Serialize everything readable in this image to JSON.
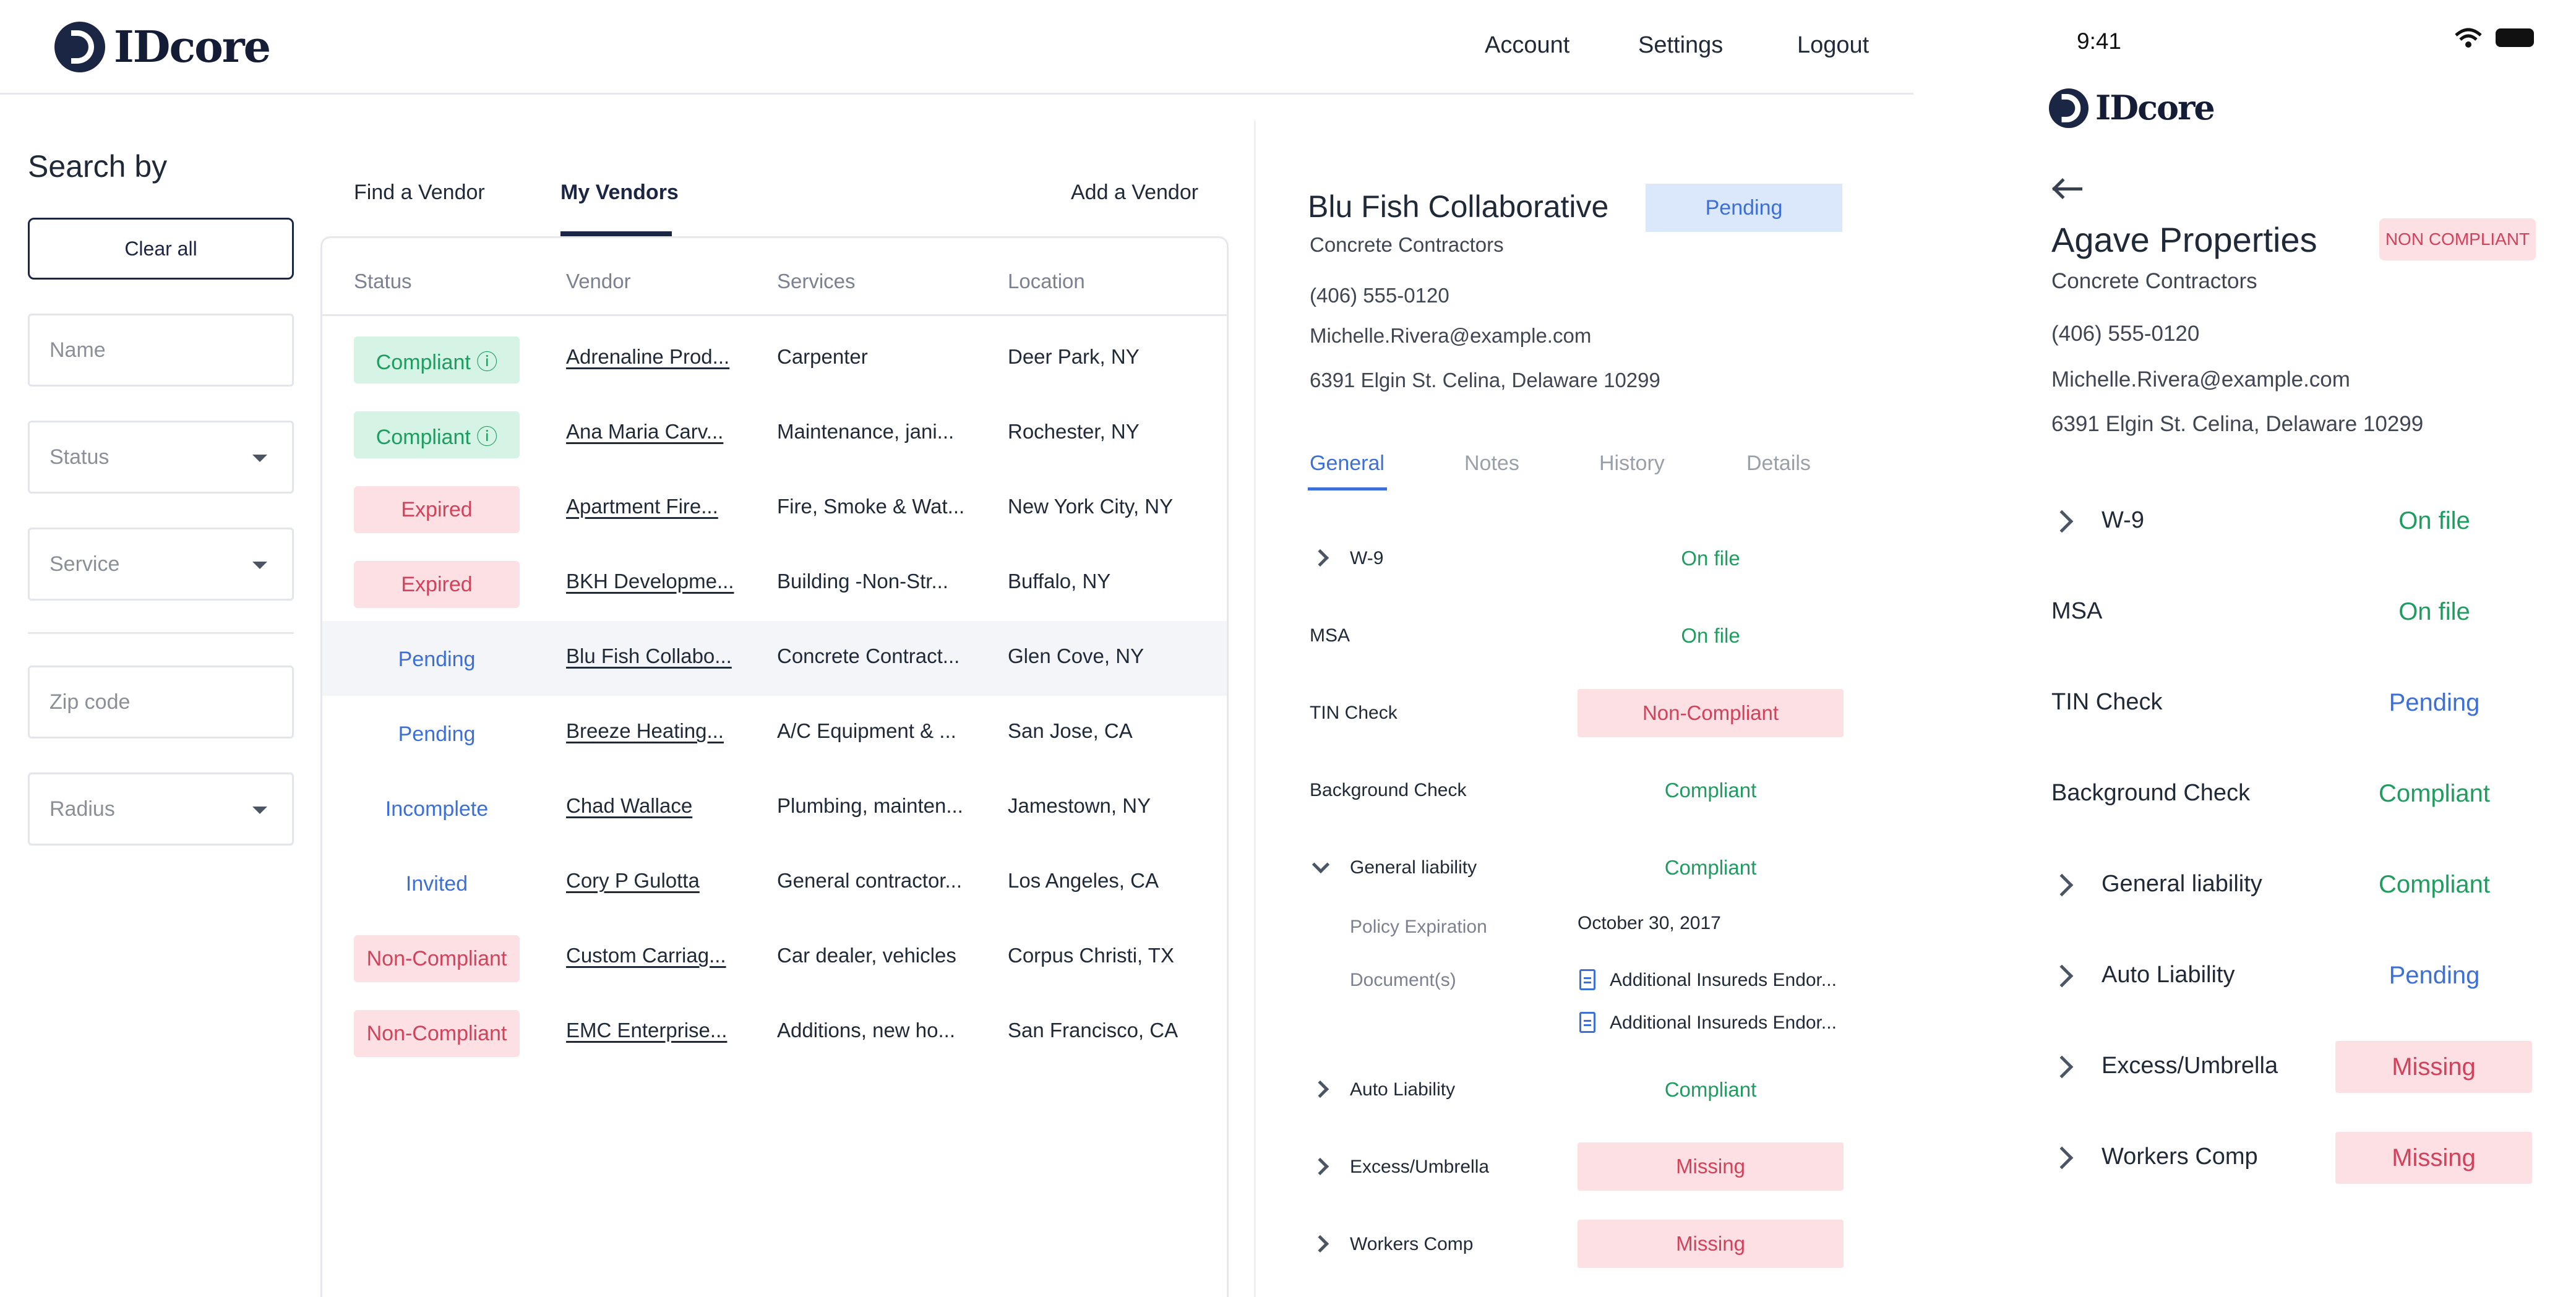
{
  "brand": {
    "name": "IDcore"
  },
  "nav": {
    "account": "Account",
    "settings": "Settings",
    "logout": "Logout"
  },
  "sidebar": {
    "title": "Search by",
    "clear_all": "Clear all",
    "name_placeholder": "Name",
    "status_label": "Status",
    "service_label": "Service",
    "zip_placeholder": "Zip code",
    "radius_label": "Radius"
  },
  "tabs": {
    "find": "Find a Vendor",
    "mine": "My Vendors",
    "add": "Add a Vendor"
  },
  "table": {
    "headers": [
      "Status",
      "Vendor",
      "Services",
      "Location"
    ],
    "rows": [
      {
        "status": "Compliant ⓘ",
        "vendor": "Adrenaline Prod...",
        "services": "Carpenter",
        "location": "Deer Park, NY"
      },
      {
        "status": "Compliant ⓘ",
        "vendor": "Ana Maria Carv...",
        "services": "Maintenance, jani...",
        "location": "Rochester, NY"
      },
      {
        "status": "Expired",
        "vendor": "Apartment Fire...",
        "services": "Fire, Smoke & Wat...",
        "location": "New York City, NY"
      },
      {
        "status": "Expired",
        "vendor": "BKH Developme...",
        "services": "Building -Non-Str...",
        "location": "Buffalo, NY"
      },
      {
        "status": "Pending",
        "vendor": "Blu Fish Collabo...",
        "services": "Concrete Contract...",
        "location": "Glen Cove, NY"
      },
      {
        "status": "Pending",
        "vendor": "Breeze Heating...",
        "services": "A/C Equipment & ...",
        "location": "San Jose, CA"
      },
      {
        "status": "Incomplete",
        "vendor": "Chad Wallace",
        "services": "Plumbing, mainten...",
        "location": "Jamestown, NY"
      },
      {
        "status": "Invited",
        "vendor": "Cory P Gulotta",
        "services": "General contractor...",
        "location": "Los Angeles, CA"
      },
      {
        "status": "Non-Compliant",
        "vendor": "Custom Carriag...",
        "services": "Car dealer, vehicles",
        "location": "Corpus Christi, TX"
      },
      {
        "status": "Non-Compliant",
        "vendor": "EMC Enterprise...",
        "services": "Additions, new ho...",
        "location": "San Francisco, CA"
      }
    ]
  },
  "detail": {
    "name": "Blu Fish Collaborative",
    "status": "Pending",
    "category": "Concrete Contractors",
    "phone": "(406) 555-0120",
    "email": "Michelle.Rivera@example.com",
    "address": "6391 Elgin St. Celina, Delaware 10299",
    "tabs": [
      "General",
      "Notes",
      "History",
      "Details"
    ],
    "items": [
      {
        "label": "W-9",
        "status": "On file"
      },
      {
        "label": "MSA",
        "status": "On file"
      },
      {
        "label": "TIN Check",
        "status": "Non-Compliant"
      },
      {
        "label": "Background Check",
        "status": "Compliant"
      },
      {
        "label": "General liability",
        "status": "Compliant"
      },
      {
        "label": "Auto Liability",
        "status": "Compliant"
      },
      {
        "label": "Excess/Umbrella",
        "status": "Missing"
      },
      {
        "label": "Workers Comp",
        "status": "Missing"
      }
    ],
    "policy_label": "Policy Expiration",
    "policy_value": "October 30, 2017",
    "documents_label": "Document(s)",
    "documents": [
      "Additional Insureds Endor...",
      "Additional Insureds Endor..."
    ]
  },
  "mobile": {
    "time": "9:41",
    "name": "Agave Properties",
    "badge": "NON COMPLIANT",
    "category": "Concrete Contractors",
    "phone": "(406) 555-0120",
    "email": "Michelle.Rivera@example.com",
    "address": "6391 Elgin St. Celina, Delaware 10299",
    "items": [
      {
        "label": "W-9",
        "status": "On file"
      },
      {
        "label": "MSA",
        "status": "On file"
      },
      {
        "label": "TIN Check",
        "status": "Pending"
      },
      {
        "label": "Background Check",
        "status": "Compliant"
      },
      {
        "label": "General liability",
        "status": "Compliant"
      },
      {
        "label": "Auto Liability",
        "status": "Pending"
      },
      {
        "label": "Excess/Umbrella",
        "status": "Missing"
      },
      {
        "label": "Workers Comp",
        "status": "Missing"
      }
    ]
  },
  "colors": {
    "brand": "#1b2544",
    "accent": "#3c6fd8",
    "success": "#1f9d60",
    "danger": "#d2425b"
  }
}
